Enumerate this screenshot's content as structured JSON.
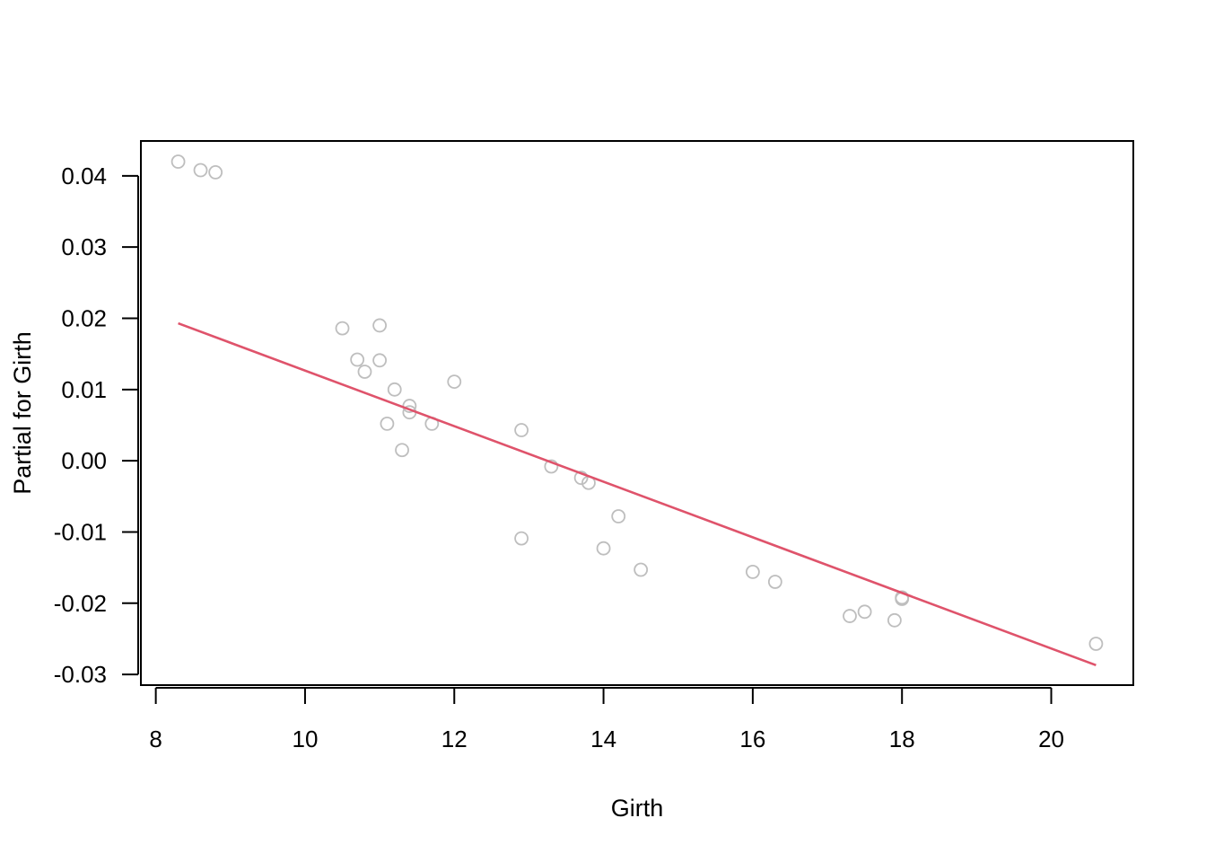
{
  "chart_data": {
    "type": "scatter",
    "title": "",
    "xlabel": "Girth",
    "ylabel": "Partial for Girth",
    "xlim": [
      7.8,
      21.1
    ],
    "ylim": [
      -0.0315,
      0.0449
    ],
    "x_ticks": [
      8,
      10,
      12,
      14,
      16,
      18,
      20
    ],
    "x_tick_labels": [
      "8",
      "10",
      "12",
      "14",
      "16",
      "18",
      "20"
    ],
    "y_ticks": [
      -0.03,
      -0.02,
      -0.01,
      0.0,
      0.01,
      0.02,
      0.03,
      0.04
    ],
    "y_tick_labels": [
      "-0.03",
      "-0.02",
      "-0.01",
      "0.00",
      "0.01",
      "0.02",
      "0.03",
      "0.04"
    ],
    "grid": false,
    "series": [
      {
        "type": "scatter",
        "color": "#bebebe",
        "points": [
          {
            "x": 8.3,
            "y": 0.042
          },
          {
            "x": 8.6,
            "y": 0.0408
          },
          {
            "x": 8.8,
            "y": 0.0405
          },
          {
            "x": 10.5,
            "y": 0.0186
          },
          {
            "x": 10.7,
            "y": 0.0142
          },
          {
            "x": 10.8,
            "y": 0.0125
          },
          {
            "x": 11.0,
            "y": 0.019
          },
          {
            "x": 11.0,
            "y": 0.0141
          },
          {
            "x": 11.1,
            "y": 0.0052
          },
          {
            "x": 11.2,
            "y": 0.01
          },
          {
            "x": 11.3,
            "y": 0.0015
          },
          {
            "x": 11.4,
            "y": 0.0077
          },
          {
            "x": 11.4,
            "y": 0.0068
          },
          {
            "x": 11.7,
            "y": 0.0052
          },
          {
            "x": 12.0,
            "y": 0.0111
          },
          {
            "x": 12.9,
            "y": 0.0043
          },
          {
            "x": 12.9,
            "y": -0.0109
          },
          {
            "x": 13.3,
            "y": -0.0008
          },
          {
            "x": 13.7,
            "y": -0.0024
          },
          {
            "x": 13.8,
            "y": -0.0031
          },
          {
            "x": 14.0,
            "y": -0.0123
          },
          {
            "x": 14.2,
            "y": -0.0078
          },
          {
            "x": 14.5,
            "y": -0.0153
          },
          {
            "x": 16.0,
            "y": -0.0156
          },
          {
            "x": 16.3,
            "y": -0.017
          },
          {
            "x": 17.3,
            "y": -0.0218
          },
          {
            "x": 17.5,
            "y": -0.0212
          },
          {
            "x": 17.9,
            "y": -0.0224
          },
          {
            "x": 18.0,
            "y": -0.0194
          },
          {
            "x": 18.0,
            "y": -0.0192
          },
          {
            "x": 20.6,
            "y": -0.0257
          }
        ]
      },
      {
        "type": "line",
        "color": "#df536b",
        "x": [
          8.3,
          20.6
        ],
        "y": [
          0.0193,
          -0.0287
        ]
      }
    ]
  }
}
